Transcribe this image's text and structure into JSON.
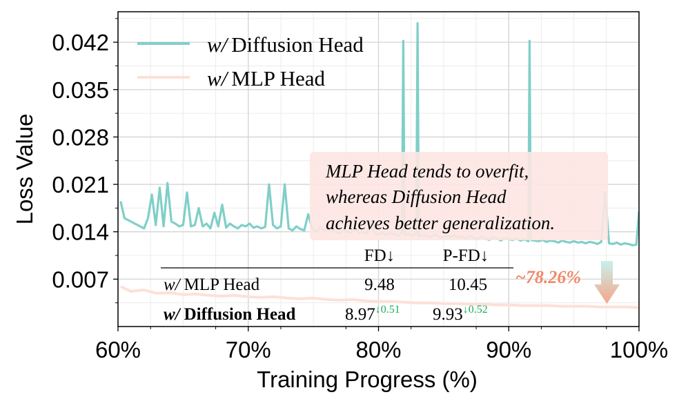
{
  "chart_data": {
    "type": "line",
    "xlabel": "Training Progress (%)",
    "ylabel": "Loss Value",
    "xlim": [
      60,
      100
    ],
    "ylim": [
      0,
      0.0465
    ],
    "x_ticks": [
      60,
      70,
      80,
      90,
      100
    ],
    "x_tick_labels": [
      "60%",
      "70%",
      "80%",
      "90%",
      "100%"
    ],
    "y_ticks": [
      0.007,
      0.014,
      0.021,
      0.028,
      0.035,
      0.042
    ],
    "y_tick_labels": [
      "0.007",
      "0.014",
      "0.021",
      "0.028",
      "0.035",
      "0.042"
    ],
    "grid": true,
    "legend_position": "top-left",
    "series": [
      {
        "name_prefix": "w/",
        "name": "Diffusion Head",
        "color": "#7fcfc8",
        "x": [
          60.2,
          60.5,
          61.0,
          61.5,
          62.0,
          62.3,
          62.6,
          62.9,
          63.2,
          63.5,
          63.8,
          64.1,
          64.4,
          64.7,
          65.0,
          65.3,
          65.6,
          65.9,
          66.2,
          66.5,
          66.8,
          67.1,
          67.4,
          67.7,
          68.0,
          68.3,
          68.6,
          68.9,
          69.2,
          69.5,
          69.8,
          70.1,
          70.4,
          70.7,
          71.0,
          71.3,
          71.6,
          71.9,
          72.2,
          72.5,
          72.8,
          73.1,
          73.4,
          73.7,
          74.0,
          74.3,
          74.6,
          74.9,
          75.2,
          75.5,
          75.8,
          76.1,
          76.4,
          76.7,
          77.0,
          77.3,
          77.6,
          77.9,
          78.2,
          78.5,
          78.8,
          79.1,
          79.4,
          79.7,
          80.0,
          80.3,
          80.6,
          80.9,
          81.2,
          81.5,
          81.8,
          81.9,
          82.0,
          82.3,
          82.6,
          82.9,
          83.0,
          83.1,
          83.4,
          83.7,
          84.0,
          84.3,
          84.6,
          84.9,
          85.2,
          85.5,
          85.8,
          86.1,
          86.4,
          86.7,
          87.0,
          87.3,
          87.6,
          87.9,
          88.2,
          88.5,
          88.8,
          89.1,
          89.4,
          89.7,
          90.0,
          90.3,
          90.6,
          90.9,
          91.2,
          91.5,
          91.6,
          91.7,
          92.0,
          92.3,
          92.6,
          92.9,
          93.2,
          93.5,
          93.8,
          94.1,
          94.4,
          94.7,
          95.0,
          95.3,
          95.6,
          95.9,
          96.2,
          96.5,
          96.8,
          97.1,
          97.4,
          97.7,
          98.0,
          98.3,
          98.6,
          98.9,
          99.2,
          99.5,
          99.8,
          100.0
        ],
        "values": [
          0.0185,
          0.016,
          0.0155,
          0.015,
          0.0145,
          0.016,
          0.0195,
          0.015,
          0.0205,
          0.0148,
          0.0212,
          0.0155,
          0.0152,
          0.0148,
          0.015,
          0.0198,
          0.0148,
          0.015,
          0.0175,
          0.0148,
          0.0152,
          0.0145,
          0.0168,
          0.0148,
          0.018,
          0.0146,
          0.0152,
          0.0148,
          0.0145,
          0.015,
          0.0148,
          0.0152,
          0.0146,
          0.0148,
          0.0145,
          0.0147,
          0.021,
          0.015,
          0.0145,
          0.0148,
          0.021,
          0.0145,
          0.0142,
          0.0148,
          0.0144,
          0.0142,
          0.0166,
          0.0145,
          0.014,
          0.0146,
          0.0142,
          0.0144,
          0.0141,
          0.014,
          0.0138,
          0.0142,
          0.014,
          0.0139,
          0.0145,
          0.0138,
          0.014,
          0.0137,
          0.0155,
          0.0138,
          0.0136,
          0.0139,
          0.0135,
          0.0138,
          0.0136,
          0.0134,
          0.0138,
          0.0422,
          0.0135,
          0.0137,
          0.0134,
          0.0136,
          0.0448,
          0.0133,
          0.0135,
          0.0134,
          0.0132,
          0.0136,
          0.0133,
          0.0131,
          0.0134,
          0.0132,
          0.0135,
          0.0131,
          0.0133,
          0.013,
          0.0134,
          0.0131,
          0.0129,
          0.0133,
          0.013,
          0.0128,
          0.0132,
          0.013,
          0.0127,
          0.0131,
          0.0129,
          0.0128,
          0.013,
          0.0127,
          0.0129,
          0.0126,
          0.0422,
          0.0128,
          0.0127,
          0.0126,
          0.0128,
          0.0125,
          0.0127,
          0.0126,
          0.0124,
          0.0127,
          0.0125,
          0.0124,
          0.0126,
          0.0124,
          0.0125,
          0.0123,
          0.0125,
          0.0124,
          0.0122,
          0.0125,
          0.0198,
          0.0123,
          0.0122,
          0.0124,
          0.0121,
          0.0123,
          0.0122,
          0.012,
          0.0121,
          0.017
        ]
      },
      {
        "name_prefix": "w/",
        "name": "MLP Head",
        "color": "#fde0d8",
        "x": [
          60.2,
          61.0,
          62.0,
          63.0,
          64.0,
          65.0,
          66.0,
          67.0,
          68.0,
          69.0,
          70.0,
          71.0,
          72.0,
          73.0,
          74.0,
          75.0,
          76.0,
          77.0,
          78.0,
          79.0,
          80.0,
          81.0,
          82.0,
          83.0,
          84.0,
          85.0,
          86.0,
          87.0,
          88.0,
          89.0,
          90.0,
          91.0,
          92.0,
          93.0,
          94.0,
          95.0,
          96.0,
          97.0,
          98.0,
          99.0,
          100.0
        ],
        "values": [
          0.0059,
          0.0052,
          0.0054,
          0.0049,
          0.005,
          0.0047,
          0.0048,
          0.0046,
          0.0045,
          0.0046,
          0.0044,
          0.0043,
          0.0044,
          0.0042,
          0.0041,
          0.0042,
          0.004,
          0.0039,
          0.004,
          0.0038,
          0.0037,
          0.0037,
          0.0036,
          0.0035,
          0.0035,
          0.0034,
          0.0034,
          0.0033,
          0.0033,
          0.0032,
          0.0032,
          0.0031,
          0.0031,
          0.0031,
          0.003,
          0.003,
          0.003,
          0.0029,
          0.0029,
          0.0029,
          0.0028
        ]
      }
    ],
    "annotation_box": {
      "lines": [
        "MLP Head tends to overfit,",
        "whereas Diffusion Head",
        "achieves better generalization."
      ],
      "background": "#fde6e2"
    },
    "reduction_label": "~78.26%",
    "reduction_color": "#f0886a",
    "table": {
      "headers": [
        "",
        "FD↓",
        "P-FD↓"
      ],
      "rows": [
        {
          "prefix": "w/",
          "name": "MLP Head",
          "fd": "9.48",
          "pfd": "10.45",
          "fd_delta": "",
          "pfd_delta": "",
          "bold": false
        },
        {
          "prefix": "w/",
          "name": "Diffusion Head",
          "fd": "8.97",
          "pfd": "9.93",
          "fd_delta": "↓0.51",
          "pfd_delta": "↓0.52",
          "bold": true
        }
      ],
      "delta_color": "#16b05a"
    }
  }
}
